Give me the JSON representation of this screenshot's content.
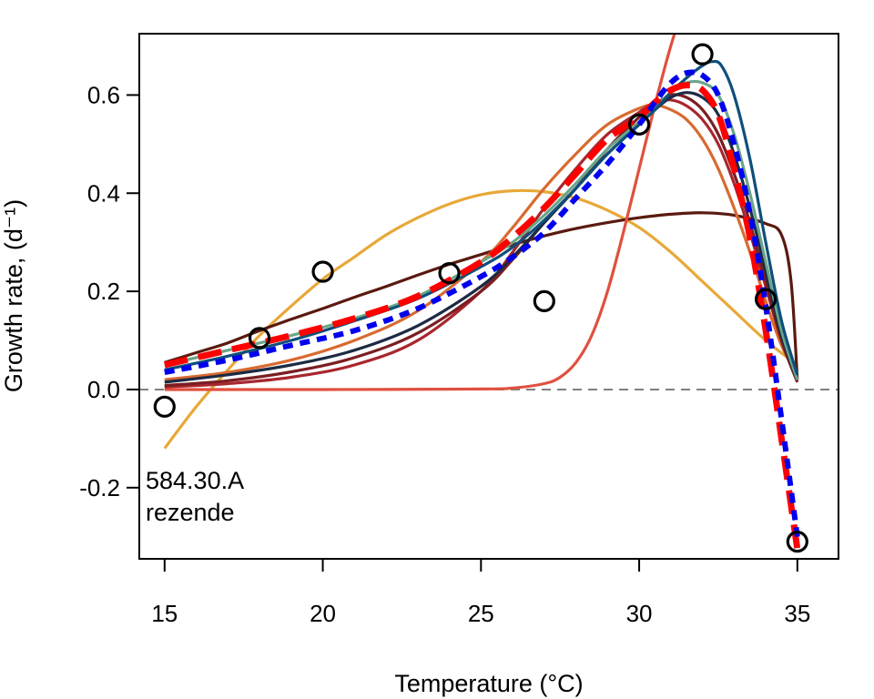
{
  "chart_data": {
    "type": "line",
    "xlabel": "Temperature (°C)",
    "ylabel": "Growth rate, (d⁻¹)",
    "xlim": [
      14.2,
      36.3
    ],
    "ylim": [
      -0.345,
      0.725
    ],
    "xticks": [
      15,
      20,
      25,
      30,
      35
    ],
    "yticks": [
      -0.2,
      0.0,
      0.2,
      0.4,
      0.6
    ],
    "ytick_labels": [
      "-0.2",
      "0.0",
      "0.2",
      "0.4",
      "0.6"
    ],
    "grid": false,
    "legend": "none",
    "annotation_lines": [
      "584.30.A",
      "rezende"
    ],
    "reference_line": {
      "y": 0,
      "style": "dashed",
      "color": "#808080"
    },
    "points": {
      "style": "open-circle",
      "color": "#000000",
      "x": [
        15,
        18,
        20,
        24,
        27,
        30,
        32,
        34,
        35
      ],
      "y": [
        -0.035,
        0.105,
        0.24,
        0.237,
        0.18,
        0.54,
        0.683,
        0.184,
        -0.31
      ]
    },
    "series": [
      {
        "color": "#e8a838",
        "style": "solid",
        "x": [
          15,
          16,
          17,
          18,
          19,
          20,
          21,
          22,
          23,
          24,
          25,
          26,
          27,
          28,
          29,
          30,
          31,
          32,
          33,
          34,
          35
        ],
        "y": [
          -0.12,
          -0.035,
          0.04,
          0.11,
          0.17,
          0.225,
          0.27,
          0.315,
          0.35,
          0.378,
          0.397,
          0.405,
          0.403,
          0.39,
          0.365,
          0.33,
          0.28,
          0.22,
          0.16,
          0.1,
          0.05
        ]
      },
      {
        "color": "#5a1a0f",
        "style": "solid",
        "x": [
          15,
          16,
          17,
          18,
          19,
          20,
          21,
          22,
          23,
          24,
          25,
          26,
          27,
          28,
          29,
          30,
          31,
          32,
          33,
          34,
          34.5,
          34.8,
          35
        ],
        "y": [
          0.055,
          0.075,
          0.095,
          0.12,
          0.143,
          0.165,
          0.188,
          0.21,
          0.233,
          0.255,
          0.275,
          0.295,
          0.313,
          0.328,
          0.34,
          0.35,
          0.357,
          0.36,
          0.355,
          0.338,
          0.315,
          0.22,
          0.02
        ]
      },
      {
        "color": "#e0503f",
        "style": "solid",
        "x": [
          15,
          20,
          25,
          26,
          27,
          27.5,
          28,
          28.5,
          29,
          29.5,
          30,
          30.5,
          31,
          31.5
        ],
        "y": [
          0,
          0,
          0.001,
          0.003,
          0.012,
          0.025,
          0.055,
          0.11,
          0.2,
          0.32,
          0.45,
          0.58,
          0.7,
          0.8
        ]
      },
      {
        "color": "#d96a30",
        "style": "solid",
        "x": [
          15,
          17,
          19,
          21,
          23,
          25,
          26,
          27,
          28,
          29,
          30,
          30.5,
          31,
          31.5,
          32,
          32.5,
          33,
          33.5,
          34,
          34.5,
          35
        ],
        "y": [
          0.02,
          0.035,
          0.06,
          0.1,
          0.16,
          0.26,
          0.33,
          0.41,
          0.48,
          0.54,
          0.573,
          0.58,
          0.57,
          0.55,
          0.51,
          0.45,
          0.37,
          0.28,
          0.18,
          0.09,
          0.03
        ]
      },
      {
        "color": "#a8262e",
        "style": "solid",
        "x": [
          15,
          17,
          19,
          21,
          23,
          25,
          26,
          27,
          28,
          29,
          30,
          30.5,
          31,
          31.5,
          32,
          32.5,
          33,
          33.5,
          34,
          34.5,
          35
        ],
        "y": [
          0.005,
          0.012,
          0.025,
          0.05,
          0.1,
          0.2,
          0.28,
          0.37,
          0.45,
          0.52,
          0.565,
          0.585,
          0.59,
          0.578,
          0.55,
          0.5,
          0.42,
          0.32,
          0.21,
          0.1,
          0.02
        ]
      },
      {
        "color": "#7a1e22",
        "style": "solid",
        "x": [
          15,
          17,
          19,
          21,
          23,
          25,
          26,
          27,
          28,
          29,
          30,
          30.5,
          31,
          31.5,
          32,
          32.5,
          33,
          33.5,
          34,
          34.5,
          35
        ],
        "y": [
          0.008,
          0.018,
          0.036,
          0.065,
          0.115,
          0.2,
          0.265,
          0.34,
          0.41,
          0.49,
          0.555,
          0.58,
          0.6,
          0.595,
          0.57,
          0.52,
          0.44,
          0.34,
          0.22,
          0.1,
          0.015
        ]
      },
      {
        "color": "#1c2a44",
        "style": "solid",
        "x": [
          15,
          17,
          19,
          21,
          23,
          25,
          26,
          27,
          28,
          29,
          30,
          30.5,
          31,
          31.5,
          32,
          32.5,
          33,
          33.5,
          34,
          34.5,
          35
        ],
        "y": [
          0.015,
          0.03,
          0.05,
          0.08,
          0.13,
          0.21,
          0.27,
          0.34,
          0.41,
          0.48,
          0.54,
          0.57,
          0.595,
          0.605,
          0.595,
          0.56,
          0.48,
          0.37,
          0.24,
          0.11,
          0.02
        ]
      },
      {
        "color": "#6aa58a",
        "style": "solid",
        "x": [
          15,
          17,
          19,
          21,
          23,
          25,
          26,
          27,
          28,
          29,
          30,
          30.5,
          31,
          31.5,
          32,
          32.5,
          33,
          33.5,
          34,
          34.5,
          35
        ],
        "y": [
          0.05,
          0.08,
          0.11,
          0.145,
          0.19,
          0.26,
          0.3,
          0.355,
          0.42,
          0.49,
          0.545,
          0.575,
          0.605,
          0.625,
          0.625,
          0.6,
          0.52,
          0.4,
          0.26,
          0.12,
          0.02
        ]
      },
      {
        "color": "#0e4f7a",
        "style": "solid",
        "x": [
          15,
          17,
          19,
          21,
          23,
          25,
          26,
          27,
          28,
          29,
          30,
          30.5,
          31,
          31.5,
          32,
          32.3,
          32.6,
          33,
          33.5,
          34,
          34.5,
          35
        ],
        "y": [
          0.04,
          0.068,
          0.1,
          0.14,
          0.185,
          0.25,
          0.29,
          0.345,
          0.41,
          0.48,
          0.54,
          0.57,
          0.605,
          0.635,
          0.66,
          0.668,
          0.66,
          0.6,
          0.47,
          0.3,
          0.14,
          0.03
        ]
      },
      {
        "color": "#ff0000",
        "style": "dashed",
        "x": [
          15,
          17,
          19,
          21,
          23,
          25,
          26,
          27,
          28,
          29,
          30,
          30.5,
          31,
          31.5,
          32,
          32.5,
          33,
          33.5,
          34,
          34.5,
          35
        ],
        "y": [
          0.05,
          0.08,
          0.11,
          0.145,
          0.19,
          0.26,
          0.31,
          0.37,
          0.44,
          0.51,
          0.555,
          0.585,
          0.61,
          0.62,
          0.61,
          0.56,
          0.45,
          0.31,
          0.12,
          -0.1,
          -0.325
        ]
      },
      {
        "color": "#0000ee",
        "style": "dotted",
        "x": [
          15,
          17,
          19,
          21,
          23,
          25,
          26,
          27,
          28,
          29,
          30,
          30.5,
          31,
          31.5,
          32,
          32.5,
          33,
          33.5,
          34,
          34.5,
          35
        ],
        "y": [
          0.035,
          0.06,
          0.09,
          0.12,
          0.165,
          0.23,
          0.27,
          0.32,
          0.39,
          0.46,
          0.54,
          0.585,
          0.625,
          0.645,
          0.64,
          0.6,
          0.5,
          0.36,
          0.17,
          -0.06,
          -0.3
        ]
      }
    ]
  }
}
